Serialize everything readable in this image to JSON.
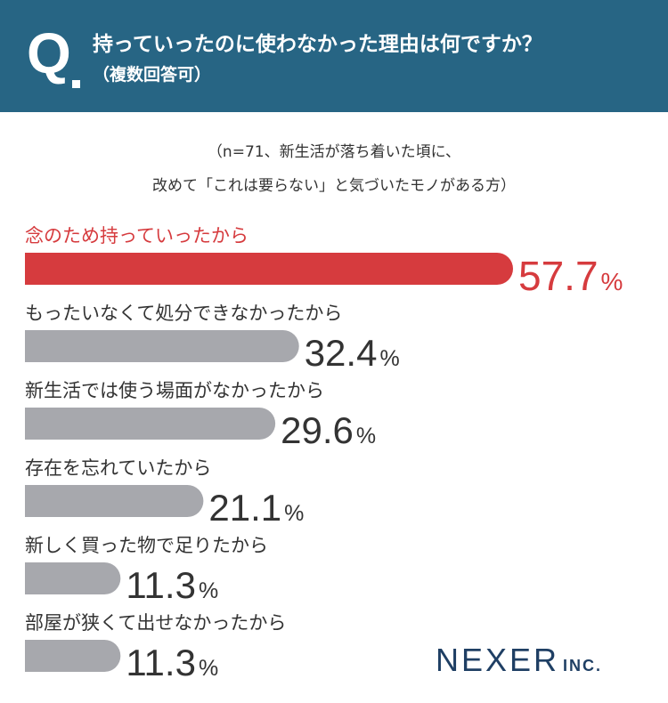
{
  "header": {
    "q_mark": "Q",
    "question": "持っていったのに使わなかった理由は何ですか？",
    "question_sub": "（複数回答可）"
  },
  "note": {
    "line1": "（n=71、新生活が落ち着いた頃に、",
    "line2": "改めて「これは要らない」と気づいたモノがある方）"
  },
  "chart_data": {
    "type": "bar",
    "orientation": "horizontal",
    "categories": [
      "念のため持っていったから",
      "もったいなくて処分できなかったから",
      "新生活では使う場面がなかったから",
      "存在を忘れていたから",
      "新しく買った物で足りたから",
      "部屋が狭くて出せなかったから"
    ],
    "values": [
      57.7,
      32.4,
      29.6,
      21.1,
      11.3,
      11.3
    ],
    "unit": "%",
    "highlight_index": 0,
    "colors": {
      "highlight": "#d63b3e",
      "default": "#a7a8ad",
      "label": "#333333"
    }
  },
  "logo": {
    "main": "NEXER",
    "sub": "INC."
  }
}
